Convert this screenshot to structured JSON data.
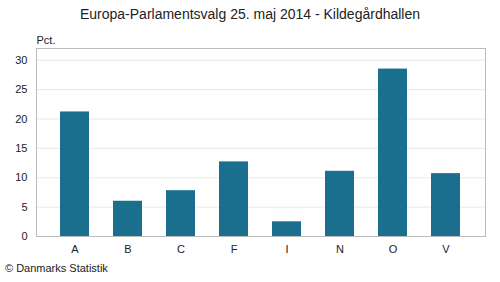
{
  "chart_data": {
    "type": "bar",
    "title": "Europa-Parlamentsvalg 25. maj 2014 - Kildegårdhallen",
    "ylabel": "Pct.",
    "footer": "© Danmarks Statistik",
    "categories": [
      "A",
      "B",
      "C",
      "F",
      "I",
      "N",
      "O",
      "V"
    ],
    "values": [
      21.2,
      6.0,
      7.8,
      12.7,
      2.5,
      11.1,
      28.5,
      10.7
    ],
    "color": "#1a6e8e",
    "ylim": [
      0,
      32
    ],
    "yticks": [
      0,
      5,
      10,
      15,
      20,
      25,
      30
    ],
    "grid": true
  }
}
